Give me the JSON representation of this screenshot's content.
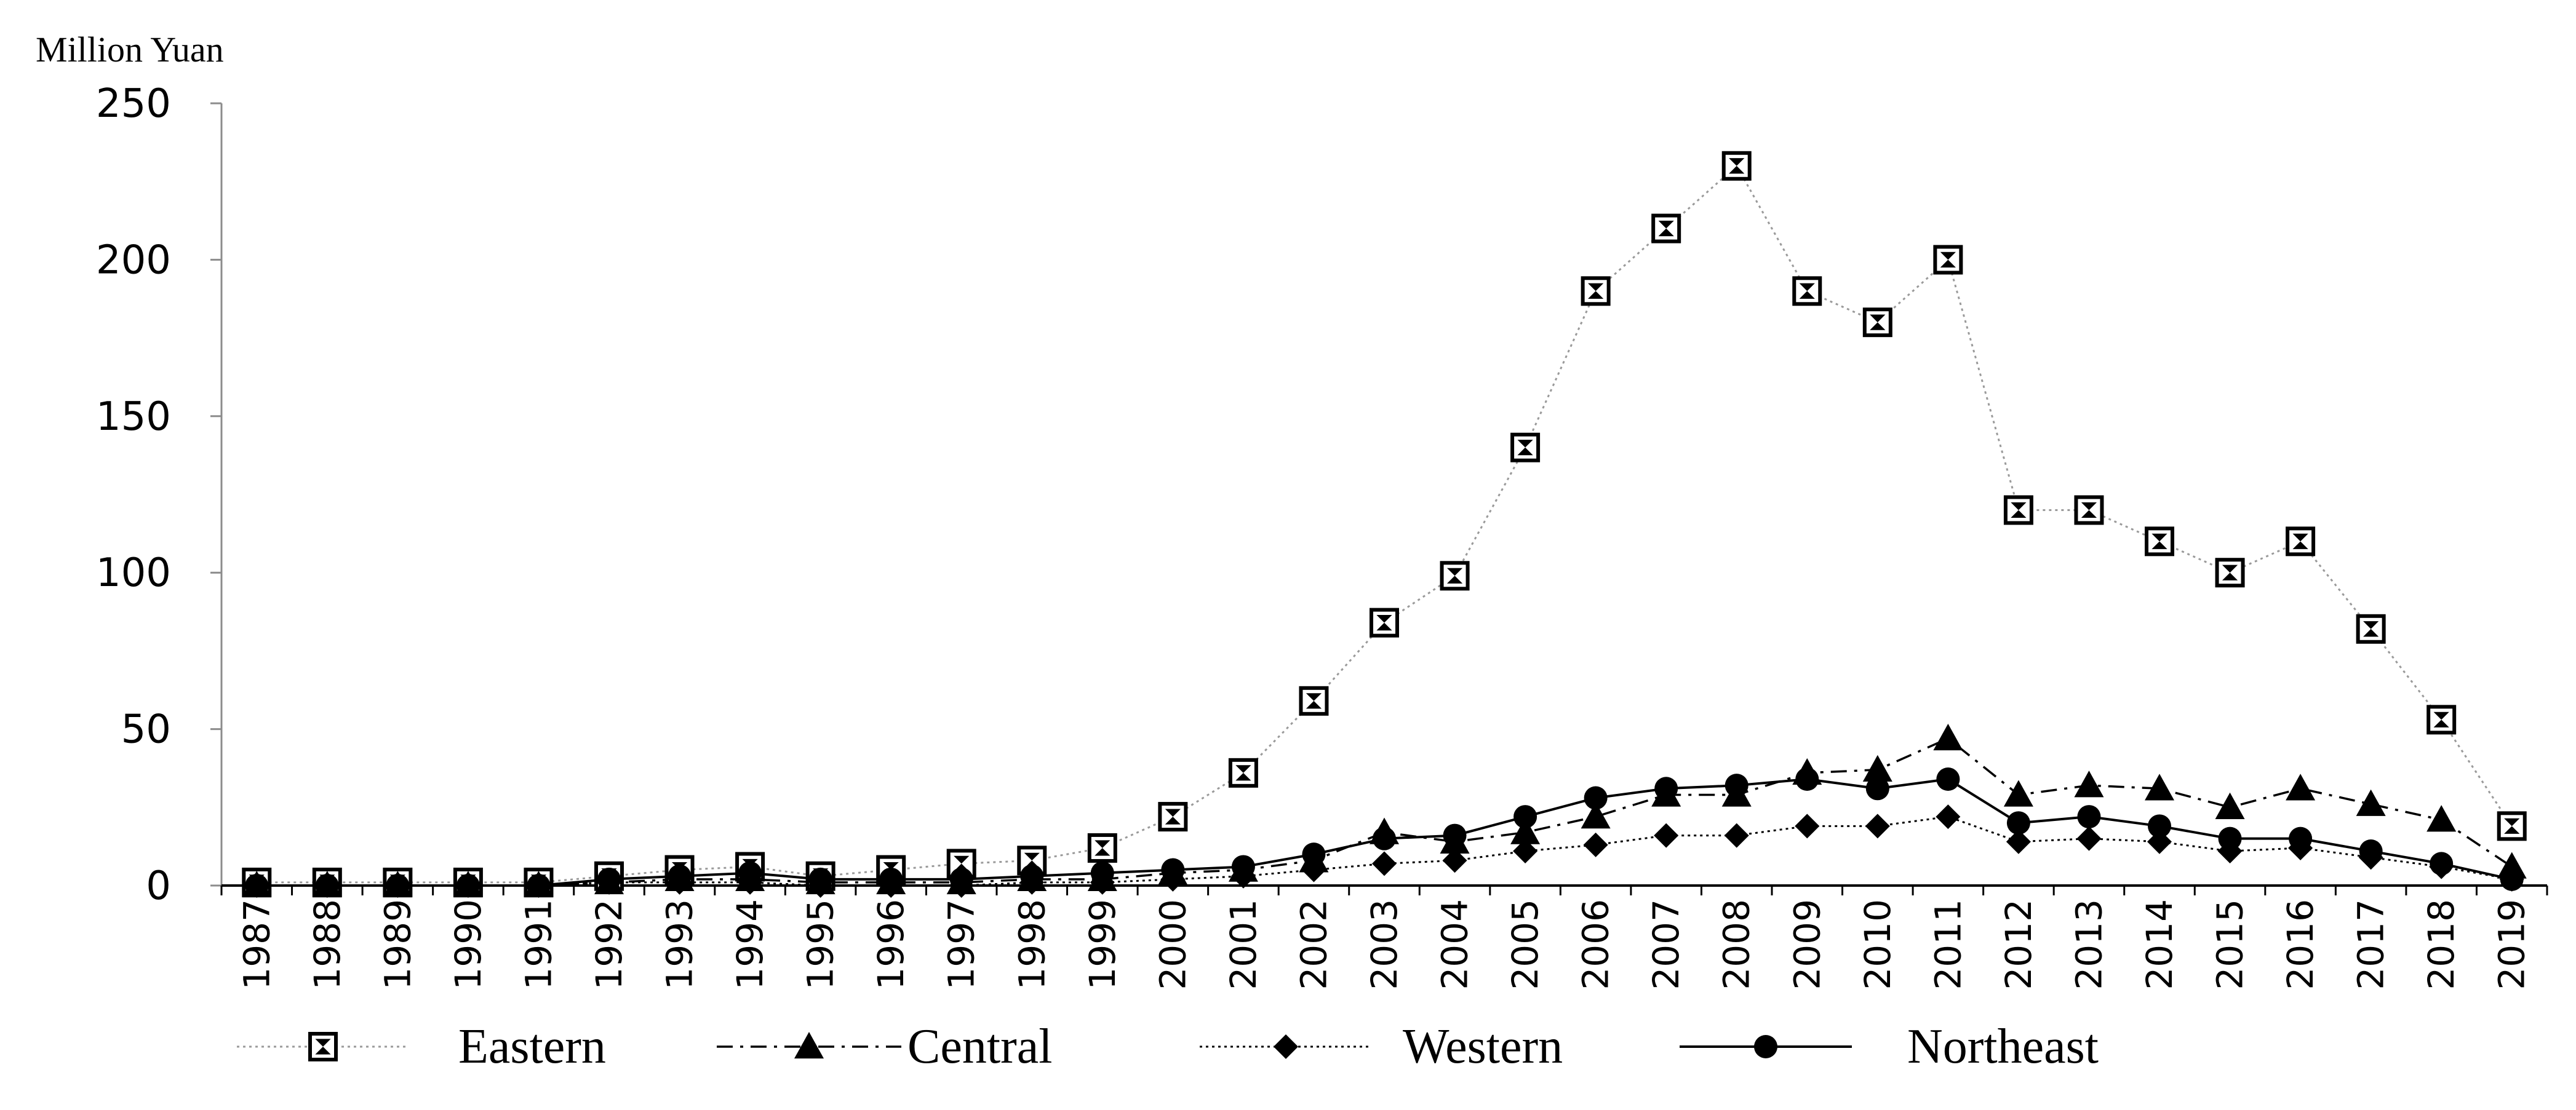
{
  "chart_data": {
    "type": "line",
    "ylabel": "Million Yuan",
    "xlabel": "",
    "ylim": [
      0,
      250
    ],
    "y_ticks": [
      0,
      50,
      100,
      150,
      200,
      250
    ],
    "x": [
      "1987",
      "1988",
      "1989",
      "1990",
      "1991",
      "1992",
      "1993",
      "1994",
      "1995",
      "1996",
      "1997",
      "1998",
      "1999",
      "2000",
      "2001",
      "2002",
      "2003",
      "2004",
      "2005",
      "2006",
      "2007",
      "2008",
      "2009",
      "2010",
      "2011",
      "2012",
      "2013",
      "2014",
      "2015",
      "2016",
      "2017",
      "2018",
      "2019"
    ],
    "grid": false,
    "legend_position": "bottom",
    "series": [
      {
        "name": "Eastern",
        "marker": "boxed-x-square",
        "line_style": "dotted",
        "color": "#9a9a9a",
        "values": [
          1,
          1,
          1,
          1,
          1,
          3,
          5,
          6,
          3,
          5,
          7,
          8,
          12,
          22,
          36,
          59,
          84,
          99,
          140,
          190,
          210,
          230,
          190,
          180,
          200,
          120,
          120,
          110,
          100,
          110,
          82,
          53,
          19
        ]
      },
      {
        "name": "Central",
        "marker": "triangle",
        "line_style": "dash-dot",
        "color": "#000000",
        "values": [
          0,
          0,
          0,
          0,
          0,
          1,
          2,
          2,
          1,
          1,
          1,
          2,
          2,
          4,
          5,
          8,
          17,
          14,
          17,
          22,
          29,
          29,
          36,
          37,
          47,
          29,
          32,
          31,
          25,
          31,
          26,
          21,
          6
        ]
      },
      {
        "name": "Western",
        "marker": "diamond",
        "line_style": "dotted",
        "color": "#000000",
        "values": [
          0,
          0,
          0,
          0,
          0,
          1,
          1,
          1,
          0,
          0,
          0,
          1,
          1,
          2,
          3,
          5,
          7,
          8,
          11,
          13,
          16,
          16,
          19,
          19,
          22,
          14,
          15,
          14,
          11,
          12,
          9,
          6,
          2
        ]
      },
      {
        "name": "Northeast",
        "marker": "circle",
        "line_style": "solid",
        "color": "#000000",
        "values": [
          0,
          0,
          0,
          0,
          0,
          2,
          3,
          4,
          2,
          2,
          2,
          3,
          4,
          5,
          6,
          10,
          15,
          16,
          22,
          28,
          31,
          32,
          34,
          31,
          34,
          20,
          22,
          19,
          15,
          15,
          11,
          7,
          2
        ]
      }
    ]
  }
}
